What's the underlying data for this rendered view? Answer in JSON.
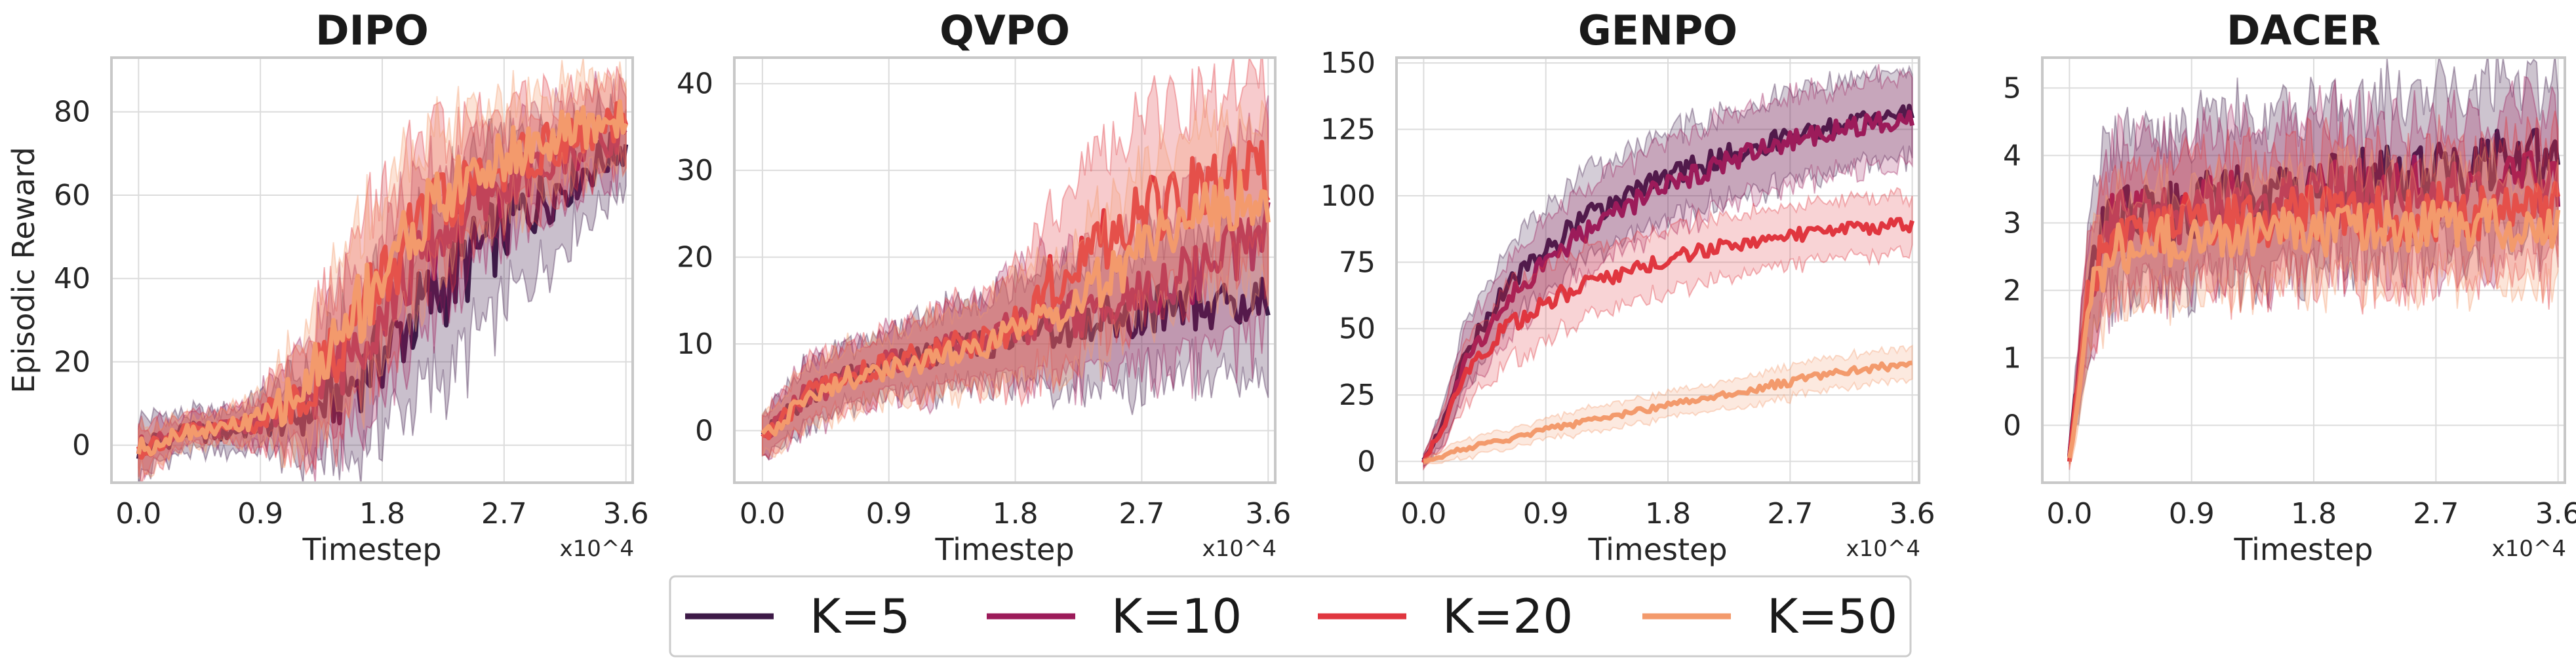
{
  "chart_data": [
    {
      "type": "line",
      "title": "DIPO",
      "xlabel": "Timestep",
      "ylabel": "Episodic Reward",
      "x_multiplier": "x10^4",
      "xlim": [
        -0.2,
        3.65
      ],
      "ylim": [
        -9,
        93
      ],
      "xticks": [
        0.0,
        0.9,
        1.8,
        2.7,
        3.6
      ],
      "xtick_labels": [
        "0.0",
        "0.9",
        "1.8",
        "2.7",
        "3.6"
      ],
      "yticks": [
        0,
        20,
        40,
        60,
        80
      ],
      "ytick_labels": [
        "0",
        "20",
        "40",
        "60",
        "80"
      ],
      "grid": true,
      "series": [
        {
          "name": "K=5",
          "x": [
            0.0,
            0.3,
            0.6,
            0.9,
            1.2,
            1.5,
            1.8,
            2.1,
            2.4,
            2.7,
            3.0,
            3.3,
            3.6
          ],
          "values": [
            -1,
            3,
            3,
            5,
            7,
            12,
            22,
            33,
            43,
            52,
            60,
            66,
            72
          ],
          "band": [
            6,
            4,
            4,
            5,
            9,
            13,
            16,
            18,
            18,
            16,
            13,
            10,
            8
          ]
        },
        {
          "name": "K=10",
          "x": [
            0.0,
            0.3,
            0.6,
            0.9,
            1.2,
            1.5,
            1.8,
            2.1,
            2.4,
            2.7,
            3.0,
            3.3,
            3.6
          ],
          "values": [
            -1,
            3,
            4,
            6,
            10,
            20,
            33,
            45,
            55,
            62,
            67,
            72,
            76
          ],
          "band": [
            5,
            3,
            3,
            5,
            10,
            15,
            16,
            15,
            13,
            11,
            10,
            9,
            8
          ]
        },
        {
          "name": "K=20",
          "x": [
            0.0,
            0.3,
            0.6,
            0.9,
            1.2,
            1.5,
            1.8,
            2.1,
            2.4,
            2.7,
            3.0,
            3.3,
            3.6
          ],
          "values": [
            -1,
            3,
            4,
            6,
            12,
            25,
            40,
            53,
            61,
            67,
            71,
            74,
            78
          ],
          "band": [
            5,
            3,
            3,
            5,
            11,
            16,
            17,
            15,
            13,
            11,
            10,
            9,
            8
          ]
        },
        {
          "name": "K=50",
          "x": [
            0.0,
            0.3,
            0.6,
            0.9,
            1.2,
            1.5,
            1.8,
            2.1,
            2.4,
            2.7,
            3.0,
            3.3,
            3.6
          ],
          "values": [
            -1,
            3,
            4,
            6,
            13,
            27,
            42,
            55,
            63,
            69,
            73,
            76,
            79
          ],
          "band": [
            5,
            3,
            3,
            5,
            11,
            16,
            17,
            15,
            13,
            11,
            10,
            9,
            9
          ]
        }
      ]
    },
    {
      "type": "line",
      "title": "QVPO",
      "xlabel": "Timestep",
      "ylabel": "",
      "x_multiplier": "x10^4",
      "xlim": [
        -0.2,
        3.65
      ],
      "ylim": [
        -6,
        43
      ],
      "xticks": [
        0.0,
        0.9,
        1.8,
        2.7,
        3.6
      ],
      "xtick_labels": [
        "0.0",
        "0.9",
        "1.8",
        "2.7",
        "3.6"
      ],
      "yticks": [
        0,
        10,
        20,
        30,
        40
      ],
      "ytick_labels": [
        "0",
        "10",
        "20",
        "30",
        "40"
      ],
      "grid": true,
      "series": [
        {
          "name": "K=5",
          "x": [
            0.0,
            0.3,
            0.6,
            0.9,
            1.2,
            1.5,
            1.8,
            2.1,
            2.4,
            2.7,
            3.0,
            3.3,
            3.6
          ],
          "values": [
            -1,
            4,
            6,
            8,
            9,
            10,
            11,
            12,
            13,
            14,
            15,
            14,
            15
          ],
          "band": [
            2,
            3,
            3,
            3,
            4,
            4,
            5,
            6,
            6,
            7,
            7,
            7,
            8
          ]
        },
        {
          "name": "K=10",
          "x": [
            0.0,
            0.3,
            0.6,
            0.9,
            1.2,
            1.5,
            1.8,
            2.1,
            2.4,
            2.7,
            3.0,
            3.3,
            3.6
          ],
          "values": [
            -1,
            4,
            6,
            8,
            9,
            10,
            12,
            13,
            14,
            16,
            18,
            20,
            24
          ],
          "band": [
            2,
            3,
            3,
            3,
            4,
            4,
            5,
            6,
            6,
            7,
            8,
            9,
            10
          ]
        },
        {
          "name": "K=20",
          "x": [
            0.0,
            0.3,
            0.6,
            0.9,
            1.2,
            1.5,
            1.8,
            2.1,
            2.4,
            2.7,
            3.0,
            3.3,
            3.6
          ],
          "values": [
            -1,
            4,
            6,
            8,
            9,
            10,
            12,
            18,
            22,
            25,
            27,
            29,
            30
          ],
          "band": [
            2,
            3,
            3,
            3,
            4,
            4,
            6,
            8,
            9,
            9,
            9,
            9,
            9
          ]
        },
        {
          "name": "K=50",
          "x": [
            0.0,
            0.3,
            0.6,
            0.9,
            1.2,
            1.5,
            1.8,
            2.1,
            2.4,
            2.7,
            3.0,
            3.3,
            3.6
          ],
          "values": [
            -1,
            4,
            6,
            7,
            8,
            9,
            11,
            14,
            17,
            21,
            24,
            26,
            27
          ],
          "band": [
            2,
            3,
            3,
            3,
            4,
            4,
            5,
            6,
            7,
            7,
            8,
            8,
            8
          ]
        }
      ]
    },
    {
      "type": "line",
      "title": "GENPO",
      "xlabel": "Timestep",
      "ylabel": "",
      "x_multiplier": "x10^4",
      "xlim": [
        -0.2,
        3.65
      ],
      "ylim": [
        -8,
        152
      ],
      "xticks": [
        0.0,
        0.9,
        1.8,
        2.7,
        3.6
      ],
      "xtick_labels": [
        "0.0",
        "0.9",
        "1.8",
        "2.7",
        "3.6"
      ],
      "yticks": [
        0,
        25,
        50,
        75,
        100,
        125,
        150
      ],
      "ytick_labels": [
        "0",
        "25",
        "50",
        "75",
        "100",
        "125",
        "150"
      ],
      "grid": true,
      "series": [
        {
          "name": "K=5",
          "x": [
            0.0,
            0.15,
            0.3,
            0.6,
            0.9,
            1.2,
            1.5,
            1.8,
            2.1,
            2.4,
            2.7,
            3.0,
            3.3,
            3.6
          ],
          "values": [
            0,
            15,
            40,
            65,
            80,
            92,
            100,
            107,
            113,
            118,
            122,
            125,
            128,
            130
          ],
          "band": [
            2,
            6,
            10,
            12,
            13,
            14,
            14,
            14,
            14,
            14,
            14,
            14,
            14,
            14
          ]
        },
        {
          "name": "K=10",
          "x": [
            0.0,
            0.15,
            0.3,
            0.6,
            0.9,
            1.2,
            1.5,
            1.8,
            2.1,
            2.4,
            2.7,
            3.0,
            3.3,
            3.6
          ],
          "values": [
            0,
            14,
            36,
            60,
            75,
            87,
            96,
            104,
            110,
            116,
            120,
            124,
            127,
            129
          ],
          "band": [
            2,
            6,
            10,
            12,
            13,
            14,
            14,
            14,
            14,
            14,
            14,
            14,
            14,
            14
          ]
        },
        {
          "name": "K=20",
          "x": [
            0.0,
            0.15,
            0.3,
            0.6,
            0.9,
            1.2,
            1.5,
            1.8,
            2.1,
            2.4,
            2.7,
            3.0,
            3.3,
            3.6
          ],
          "values": [
            0,
            14,
            34,
            50,
            60,
            67,
            72,
            76,
            80,
            83,
            85,
            87,
            88,
            89
          ],
          "band": [
            2,
            6,
            10,
            12,
            12,
            11,
            10,
            10,
            10,
            10,
            9,
            9,
            9,
            9
          ]
        },
        {
          "name": "K=50",
          "x": [
            0.0,
            0.15,
            0.3,
            0.6,
            0.9,
            1.2,
            1.5,
            1.8,
            2.1,
            2.4,
            2.7,
            3.0,
            3.3,
            3.6
          ],
          "values": [
            0,
            2,
            5,
            8,
            12,
            15,
            18,
            21,
            24,
            27,
            30,
            33,
            35,
            37
          ],
          "band": [
            1,
            2,
            3,
            3,
            3,
            4,
            4,
            4,
            4,
            5,
            5,
            5,
            5,
            5
          ]
        }
      ]
    },
    {
      "type": "line",
      "title": "DACER",
      "xlabel": "Timestep",
      "ylabel": "",
      "x_multiplier": "x10^4",
      "xlim": [
        -0.2,
        3.65
      ],
      "ylim": [
        -0.85,
        5.45
      ],
      "xticks": [
        0.0,
        0.9,
        1.8,
        2.7,
        3.6
      ],
      "xtick_labels": [
        "0.0",
        "0.9",
        "1.8",
        "2.7",
        "3.6"
      ],
      "yticks": [
        0,
        1,
        2,
        3,
        4,
        5
      ],
      "ytick_labels": [
        "0",
        "1",
        "2",
        "3",
        "4",
        "5"
      ],
      "grid": true,
      "series": [
        {
          "name": "K=5",
          "x": [
            0.0,
            0.15,
            0.3,
            0.6,
            0.9,
            1.2,
            1.5,
            1.8,
            2.1,
            2.4,
            2.7,
            3.0,
            3.3,
            3.6
          ],
          "values": [
            -0.5,
            2.2,
            3.0,
            3.1,
            3.2,
            3.3,
            3.4,
            3.5,
            3.6,
            3.7,
            3.7,
            3.8,
            3.85,
            3.9
          ],
          "band": [
            0.1,
            0.9,
            1.0,
            1.0,
            1.0,
            1.0,
            1.0,
            1.0,
            1.0,
            1.0,
            1.0,
            1.0,
            1.0,
            1.0
          ]
        },
        {
          "name": "K=10",
          "x": [
            0.0,
            0.15,
            0.3,
            0.6,
            0.9,
            1.2,
            1.5,
            1.8,
            2.1,
            2.4,
            2.7,
            3.0,
            3.3,
            3.6
          ],
          "values": [
            -0.5,
            2.1,
            3.0,
            3.1,
            3.2,
            3.3,
            3.35,
            3.4,
            3.45,
            3.5,
            3.5,
            3.55,
            3.6,
            3.6
          ],
          "band": [
            0.1,
            0.8,
            0.9,
            0.9,
            0.9,
            0.9,
            0.9,
            0.9,
            0.9,
            0.9,
            0.9,
            0.9,
            0.9,
            0.9
          ]
        },
        {
          "name": "K=20",
          "x": [
            0.0,
            0.15,
            0.3,
            0.6,
            0.9,
            1.2,
            1.5,
            1.8,
            2.1,
            2.4,
            2.7,
            3.0,
            3.3,
            3.6
          ],
          "values": [
            -0.5,
            2.0,
            2.8,
            2.9,
            3.0,
            3.0,
            3.05,
            3.1,
            3.1,
            3.1,
            3.15,
            3.2,
            3.2,
            3.2
          ],
          "band": [
            0.1,
            0.8,
            0.8,
            0.8,
            0.8,
            0.8,
            0.8,
            0.8,
            0.8,
            0.8,
            0.8,
            0.8,
            0.8,
            0.8
          ]
        },
        {
          "name": "K=50",
          "x": [
            0.0,
            0.15,
            0.3,
            0.6,
            0.9,
            1.2,
            1.5,
            1.8,
            2.1,
            2.4,
            2.7,
            3.0,
            3.3,
            3.6
          ],
          "values": [
            -0.5,
            1.9,
            2.6,
            2.7,
            2.8,
            2.8,
            2.85,
            2.9,
            2.9,
            2.95,
            2.95,
            3.0,
            2.95,
            2.9
          ],
          "band": [
            0.1,
            0.7,
            0.7,
            0.7,
            0.7,
            0.7,
            0.7,
            0.7,
            0.7,
            0.7,
            0.7,
            0.7,
            0.7,
            0.7
          ]
        }
      ]
    }
  ],
  "legend": {
    "placement": "bottom-center",
    "entries": [
      {
        "label": "K=5",
        "color": "#3d1a47"
      },
      {
        "label": "K=10",
        "color": "#9c1b5a"
      },
      {
        "label": "K=20",
        "color": "#e0363f"
      },
      {
        "label": "K=50",
        "color": "#f39a6c"
      }
    ]
  }
}
